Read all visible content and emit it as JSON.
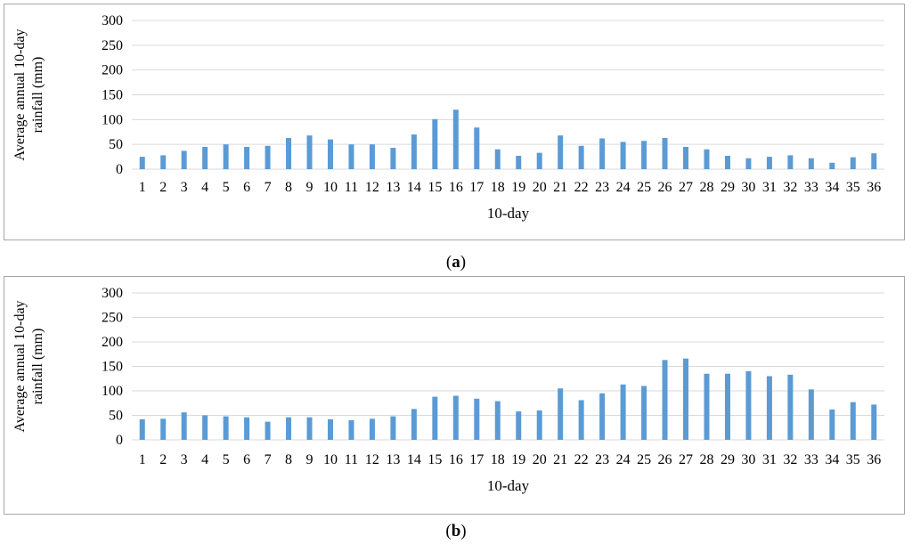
{
  "chart_data": [
    {
      "type": "bar",
      "panel_label": "a",
      "ylabel_lines": [
        "Average annual 10-day",
        "rainfall (mm)"
      ],
      "xlabel": "10-day",
      "ylim": [
        0,
        300
      ],
      "yticks": [
        0,
        50,
        100,
        150,
        200,
        250,
        300
      ],
      "grid": true,
      "bar_color": "#5b9bd5",
      "categories": [
        "1",
        "2",
        "3",
        "4",
        "5",
        "6",
        "7",
        "8",
        "9",
        "10",
        "11",
        "12",
        "13",
        "14",
        "15",
        "16",
        "17",
        "18",
        "19",
        "20",
        "21",
        "22",
        "23",
        "24",
        "25",
        "26",
        "27",
        "28",
        "29",
        "30",
        "31",
        "32",
        "33",
        "34",
        "35",
        "36"
      ],
      "values": [
        25,
        28,
        37,
        45,
        50,
        45,
        47,
        63,
        68,
        60,
        50,
        50,
        43,
        70,
        101,
        120,
        84,
        40,
        27,
        33,
        68,
        47,
        62,
        55,
        57,
        63,
        45,
        40,
        27,
        22,
        25,
        28,
        22,
        13,
        24,
        32
      ]
    },
    {
      "type": "bar",
      "panel_label": "b",
      "ylabel_lines": [
        "Average annual 10-day",
        "rainfall (mm)"
      ],
      "xlabel": "10-day",
      "ylim": [
        0,
        300
      ],
      "yticks": [
        0,
        50,
        100,
        150,
        200,
        250,
        300
      ],
      "grid": true,
      "bar_color": "#5b9bd5",
      "categories": [
        "1",
        "2",
        "3",
        "4",
        "5",
        "6",
        "7",
        "8",
        "9",
        "10",
        "11",
        "12",
        "13",
        "14",
        "15",
        "16",
        "17",
        "18",
        "19",
        "20",
        "21",
        "22",
        "23",
        "24",
        "25",
        "26",
        "27",
        "28",
        "29",
        "30",
        "31",
        "32",
        "33",
        "34",
        "35",
        "36"
      ],
      "values": [
        42,
        43,
        56,
        50,
        48,
        46,
        37,
        46,
        46,
        42,
        40,
        43,
        48,
        63,
        88,
        90,
        84,
        79,
        58,
        60,
        105,
        81,
        95,
        113,
        110,
        163,
        166,
        135,
        135,
        140,
        130,
        133,
        103,
        62,
        77,
        72
      ]
    }
  ]
}
